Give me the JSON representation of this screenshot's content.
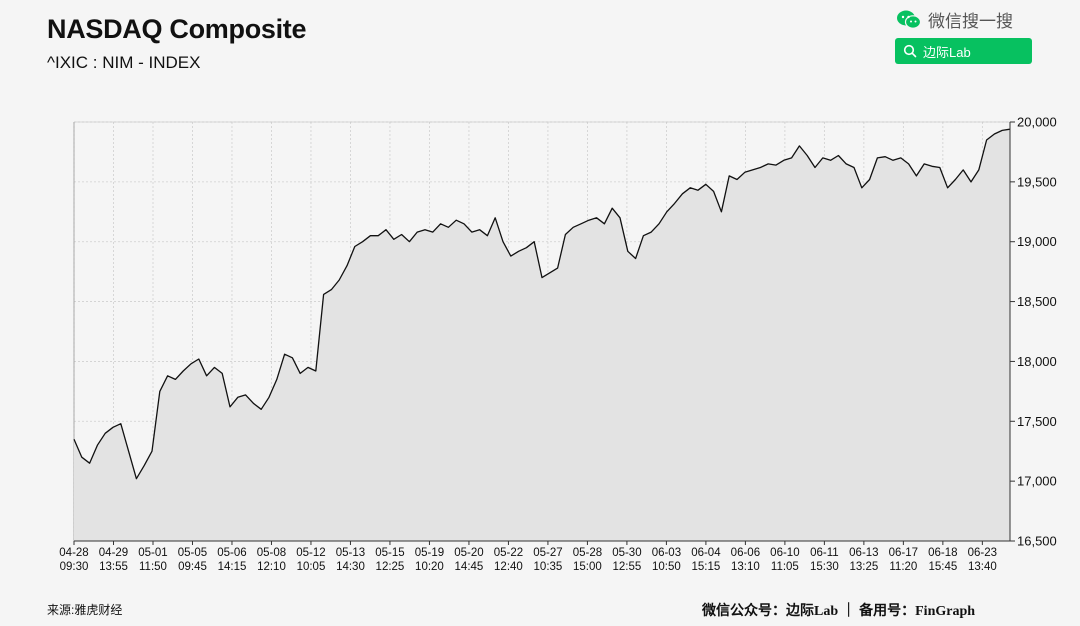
{
  "header": {
    "title": "NASDAQ Composite",
    "subtitle": "^IXIC : NIM - INDEX"
  },
  "wechat": {
    "search_label": "微信搜一搜",
    "search_button": "边际Lab",
    "icon": "wechat-icon",
    "accent": "#07c160"
  },
  "footer": {
    "source": "来源:雅虎财经",
    "credit": "微信公众号：边际Lab  ｜  备用号：FinGraph"
  },
  "chart_data": {
    "type": "area",
    "ylim": [
      16500,
      20000
    ],
    "y_ticks": [
      "16,500",
      "17,000",
      "17,500",
      "18,000",
      "18,500",
      "19,000",
      "19,500",
      "20,000"
    ],
    "x_ticks": [
      [
        "04-28",
        "09:30"
      ],
      [
        "04-29",
        "13:55"
      ],
      [
        "05-01",
        "11:50"
      ],
      [
        "05-05",
        "09:45"
      ],
      [
        "05-06",
        "14:15"
      ],
      [
        "05-08",
        "12:10"
      ],
      [
        "05-12",
        "10:05"
      ],
      [
        "05-13",
        "14:30"
      ],
      [
        "05-15",
        "12:25"
      ],
      [
        "05-19",
        "10:20"
      ],
      [
        "05-20",
        "14:45"
      ],
      [
        "05-22",
        "12:40"
      ],
      [
        "05-27",
        "10:35"
      ],
      [
        "05-28",
        "15:00"
      ],
      [
        "05-30",
        "12:55"
      ],
      [
        "06-03",
        "10:50"
      ],
      [
        "06-04",
        "15:15"
      ],
      [
        "06-06",
        "13:10"
      ],
      [
        "06-10",
        "11:05"
      ],
      [
        "06-11",
        "15:30"
      ],
      [
        "06-13",
        "13:25"
      ],
      [
        "06-17",
        "11:20"
      ],
      [
        "06-18",
        "15:45"
      ],
      [
        "06-23",
        "13:40"
      ]
    ],
    "grid": true,
    "series": [
      {
        "line_color": "#111111",
        "fill_color": "#e3e3e3",
        "values": [
          17350,
          17200,
          17150,
          17300,
          17400,
          17450,
          17480,
          17250,
          17020,
          17130,
          17250,
          17750,
          17880,
          17850,
          17920,
          17980,
          18020,
          17880,
          17950,
          17900,
          17620,
          17700,
          17720,
          17650,
          17600,
          17700,
          17850,
          18060,
          18030,
          17900,
          17950,
          17920,
          18560,
          18600,
          18680,
          18800,
          18960,
          19000,
          19050,
          19050,
          19100,
          19020,
          19060,
          19000,
          19080,
          19100,
          19080,
          19150,
          19120,
          19180,
          19150,
          19080,
          19100,
          19050,
          19200,
          19000,
          18880,
          18920,
          18950,
          19000,
          18700,
          18740,
          18780,
          19060,
          19120,
          19150,
          19180,
          19200,
          19150,
          19280,
          19200,
          18920,
          18860,
          19050,
          19080,
          19150,
          19250,
          19320,
          19400,
          19450,
          19430,
          19480,
          19420,
          19250,
          19550,
          19520,
          19580,
          19600,
          19620,
          19650,
          19640,
          19680,
          19700,
          19800,
          19720,
          19620,
          19700,
          19680,
          19720,
          19650,
          19620,
          19450,
          19520,
          19700,
          19710,
          19680,
          19700,
          19650,
          19550,
          19650,
          19630,
          19620,
          19450,
          19520,
          19600,
          19500,
          19600,
          19850,
          19900,
          19930,
          19940
        ]
      }
    ]
  }
}
